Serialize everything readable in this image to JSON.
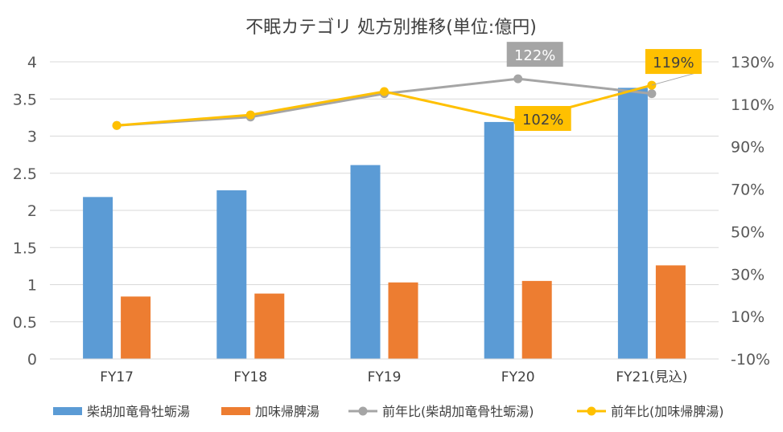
{
  "chart_data": {
    "type": "bar",
    "title": "不眠カテゴリ 処方別推移(単位:億円)",
    "categories": [
      "FY17",
      "FY18",
      "FY19",
      "FY20",
      "FY21(見込)"
    ],
    "y_left": {
      "min": 0,
      "max": 4,
      "ticks": [
        "0",
        "0.5",
        "1",
        "1.5",
        "2",
        "2.5",
        "3",
        "3.5",
        "4"
      ]
    },
    "y_right": {
      "min": -10,
      "max": 130,
      "ticks": [
        "-10%",
        "10%",
        "30%",
        "50%",
        "70%",
        "90%",
        "110%",
        "130%"
      ]
    },
    "series": [
      {
        "name": "柴胡加竜骨牡蛎湯",
        "kind": "bar",
        "axis": "left",
        "color": "#5b9bd5",
        "values": [
          2.18,
          2.27,
          2.61,
          3.19,
          3.65
        ]
      },
      {
        "name": "加味帰脾湯",
        "kind": "bar",
        "axis": "left",
        "color": "#ed7d31",
        "values": [
          0.84,
          0.88,
          1.03,
          1.05,
          1.26
        ]
      },
      {
        "name": "前年比(柴胡加竜骨牡蛎湯)",
        "kind": "line",
        "axis": "right",
        "color": "#a5a5a5",
        "values": [
          100,
          104,
          115,
          122,
          115
        ]
      },
      {
        "name": "前年比(加味帰脾湯)",
        "kind": "line",
        "axis": "right",
        "color": "#ffc000",
        "values": [
          100,
          105,
          116,
          102,
          119
        ]
      }
    ],
    "annotations": [
      {
        "text": "122%",
        "series": 2,
        "index": 3,
        "style": "gray"
      },
      {
        "text": "102%",
        "series": 3,
        "index": 3,
        "style": "yellow"
      },
      {
        "text": "119%",
        "series": 3,
        "index": 4,
        "style": "yellow"
      }
    ],
    "legend": {
      "position": "bottom"
    }
  }
}
